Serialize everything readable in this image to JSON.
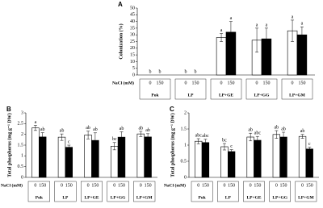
{
  "chart_data": [
    {
      "type": "bar",
      "panel": "A",
      "ylabel": "Colonization (%)",
      "xlabel": "NaCl (mM)",
      "categories": [
        "Pok",
        "LP",
        "LP+GE",
        "LP+GG",
        "LP+GM"
      ],
      "ylim": [
        0,
        50
      ],
      "yticks": [
        0,
        5,
        10,
        15,
        20,
        25,
        30,
        35,
        40,
        45,
        50
      ],
      "series": [
        {
          "name": "0",
          "color": "#ffffff",
          "values": [
            0,
            0,
            28,
            26,
            33
          ],
          "errors": [
            0,
            0,
            3,
            9,
            8
          ],
          "letters": [
            "b",
            "b",
            "a",
            "a",
            "a"
          ]
        },
        {
          "name": "150",
          "color": "#000000",
          "values": [
            0,
            0,
            32,
            27,
            30
          ],
          "errors": [
            0,
            0,
            8,
            8,
            6
          ],
          "letters": [
            "b",
            "b",
            "a",
            "a",
            "a"
          ]
        }
      ]
    },
    {
      "type": "bar",
      "panel": "B",
      "ylabel": "Total phosphorus (mg g⁻¹ DW)",
      "xlabel": "NaCl (mM)",
      "categories": [
        "Pok",
        "LP",
        "LP+GE",
        "LP+GG",
        "LP+GM"
      ],
      "ylim": [
        0,
        3
      ],
      "yticks": [
        0,
        0.5,
        1,
        1.5,
        2,
        2.5,
        3
      ],
      "series": [
        {
          "name": "0",
          "color": "#ffffff",
          "values": [
            2.3,
            1.87,
            1.97,
            1.45,
            2.02
          ],
          "errors": [
            0.12,
            0.15,
            0.18,
            0.17,
            0.12
          ],
          "letters": [
            "a",
            "ab",
            "ab",
            "bc",
            "ab"
          ]
        },
        {
          "name": "150",
          "color": "#000000",
          "values": [
            1.88,
            1.4,
            1.72,
            1.87,
            1.88
          ],
          "errors": [
            0.2,
            0.1,
            0.35,
            0.25,
            0.15
          ],
          "letters": [
            "ab",
            "c",
            "ab",
            "ab",
            "ab"
          ]
        }
      ]
    },
    {
      "type": "bar",
      "panel": "C",
      "ylabel": "Total phosphorus (mg g⁻¹ DW)",
      "xlabel": "NaCl (mM)",
      "categories": [
        "Pok",
        "LP",
        "LP+GE",
        "LP+GG",
        "LP+GM"
      ],
      "ylim": [
        0,
        2
      ],
      "yticks": [
        0,
        0.5,
        1,
        1.5,
        2
      ],
      "series": [
        {
          "name": "0",
          "color": "#ffffff",
          "values": [
            1.12,
            0.95,
            1.25,
            1.33,
            1.27
          ],
          "errors": [
            0.08,
            0.1,
            0.12,
            0.12,
            0.06
          ],
          "letters": [
            "abc",
            "bc",
            "ab",
            "ab",
            "ab"
          ]
        },
        {
          "name": "150",
          "color": "#000000",
          "values": [
            1.08,
            0.8,
            1.15,
            1.25,
            0.88
          ],
          "errors": [
            0.1,
            0.06,
            0.12,
            0.15,
            0.05
          ],
          "letters": [
            "abc",
            "c",
            "abc",
            "ab",
            "c"
          ]
        }
      ]
    }
  ]
}
